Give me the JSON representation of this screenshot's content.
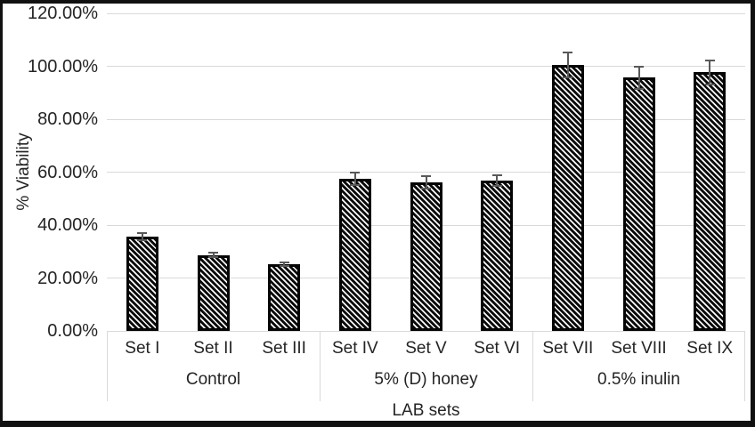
{
  "chart_data": {
    "type": "bar",
    "xlabel": "LAB sets",
    "ylabel": "% Viability",
    "value_unit": "percent",
    "ylim": [
      0,
      120
    ],
    "grid": true,
    "legend": false,
    "bar_style": "black bars with fine white downward-diagonal hatch and black border, gray error bars",
    "yticks": [
      {
        "value": 0,
        "label": "0.00%"
      },
      {
        "value": 20,
        "label": "20.00%"
      },
      {
        "value": 40,
        "label": "40.00%"
      },
      {
        "value": 60,
        "label": "60.00%"
      },
      {
        "value": 80,
        "label": "80.00%"
      },
      {
        "value": 100,
        "label": "100.00%"
      },
      {
        "value": 120,
        "label": "120.00%"
      }
    ],
    "groups": [
      {
        "label": "Control",
        "bars": [
          {
            "category": "Set I",
            "value": 35.7,
            "error": 1.7
          },
          {
            "category": "Set II",
            "value": 28.7,
            "error": 1.2
          },
          {
            "category": "Set III",
            "value": 25.3,
            "error": 1.0
          }
        ]
      },
      {
        "label": "5% (D) honey",
        "bars": [
          {
            "category": "Set IV",
            "value": 57.5,
            "error": 2.6
          },
          {
            "category": "Set V",
            "value": 56.1,
            "error": 2.6
          },
          {
            "category": "Set VI",
            "value": 56.8,
            "error": 2.4
          }
        ]
      },
      {
        "label": "0.5% inulin",
        "bars": [
          {
            "category": "Set VII",
            "value": 100.4,
            "error": 5.0
          },
          {
            "category": "Set VIII",
            "value": 95.7,
            "error": 4.6
          },
          {
            "category": "Set IX",
            "value": 97.7,
            "error": 4.8
          }
        ]
      }
    ]
  },
  "colors": {
    "background": "#ffffff",
    "frame": "#111111",
    "bar_fill": "#0a0a0a",
    "bar_hatch": "#fafafa",
    "bar_border": "#050505",
    "gridline": "#d9d9d9",
    "group_divider": "#d9d9d9",
    "error_bar": "#595959",
    "text": "#242424"
  }
}
